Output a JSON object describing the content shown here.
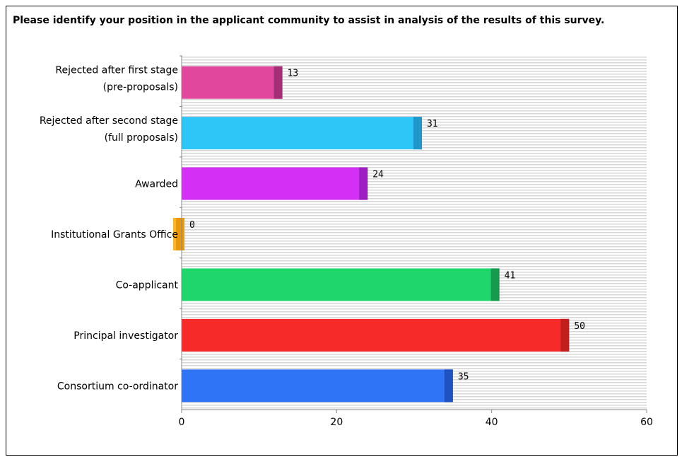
{
  "chart_data": {
    "type": "bar",
    "orientation": "horizontal",
    "title": "Please identify your position in the applicant community to assist in analysis of the results of this survey.",
    "categories": [
      [
        "Rejected after first stage",
        "(pre-proposals)"
      ],
      [
        "Rejected after second stage",
        "(full proposals)"
      ],
      [
        "Awarded"
      ],
      [
        "Institutional Grants Office"
      ],
      [
        "Co-applicant"
      ],
      [
        "Principal investigator"
      ],
      [
        "Consortium co-ordinator"
      ]
    ],
    "values": [
      13,
      31,
      24,
      0,
      41,
      50,
      35
    ],
    "colors": [
      "#e0479d",
      "#2ec5f7",
      "#d42ff5",
      "#f9b52a",
      "#1ed66a",
      "#f72a2a",
      "#2f74f5"
    ],
    "dark_colors": [
      "#a62d78",
      "#1e97cc",
      "#9c1fc2",
      "#e8980a",
      "#159b4d",
      "#c21e1e",
      "#1f52c2"
    ],
    "xlim": [
      0,
      60
    ],
    "xticks": [
      0,
      20,
      40,
      60
    ],
    "grid": "horizontal-stripes"
  }
}
